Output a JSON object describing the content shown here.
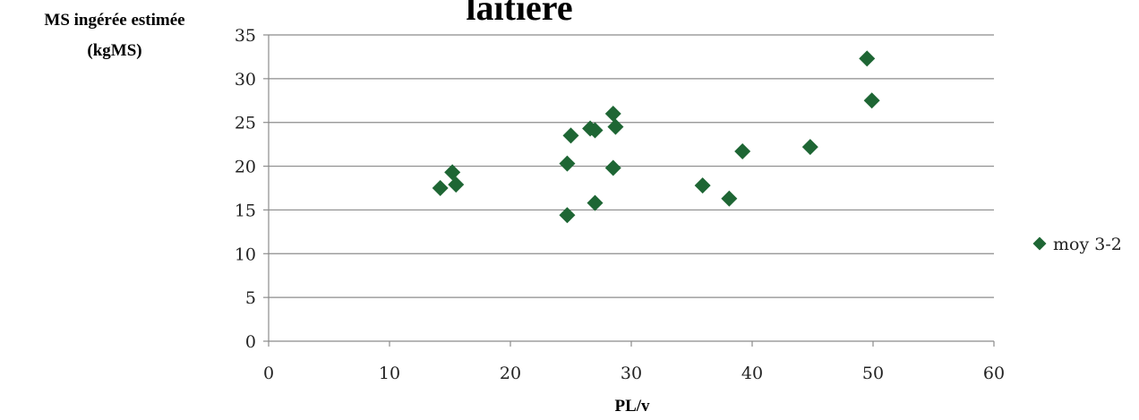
{
  "chart_data": {
    "type": "scatter",
    "title": "laitière",
    "xlabel": "PL/v",
    "ylabel_lines": [
      "MS ingérée estimée",
      "(kgMS)"
    ],
    "xlim": [
      0,
      60
    ],
    "ylim": [
      0,
      35
    ],
    "x_ticks": [
      0,
      10,
      20,
      30,
      40,
      50,
      60
    ],
    "y_ticks": [
      0,
      5,
      10,
      15,
      20,
      25,
      30,
      35
    ],
    "grid": "horizontal",
    "legend_position": "right",
    "marker": "diamond",
    "marker_color": "#1e6634",
    "series": [
      {
        "name": "moy 3-2",
        "points": [
          [
            14.2,
            17.5
          ],
          [
            15.2,
            19.3
          ],
          [
            15.5,
            17.9
          ],
          [
            24.7,
            20.3
          ],
          [
            24.7,
            14.4
          ],
          [
            25.0,
            23.5
          ],
          [
            26.6,
            24.3
          ],
          [
            27.0,
            24.1
          ],
          [
            27.0,
            15.8
          ],
          [
            28.5,
            26.0
          ],
          [
            28.7,
            24.5
          ],
          [
            28.5,
            19.8
          ],
          [
            35.9,
            17.8
          ],
          [
            38.1,
            16.3
          ],
          [
            39.2,
            21.7
          ],
          [
            44.8,
            22.2
          ],
          [
            49.5,
            32.3
          ],
          [
            49.9,
            27.5
          ]
        ]
      }
    ]
  }
}
